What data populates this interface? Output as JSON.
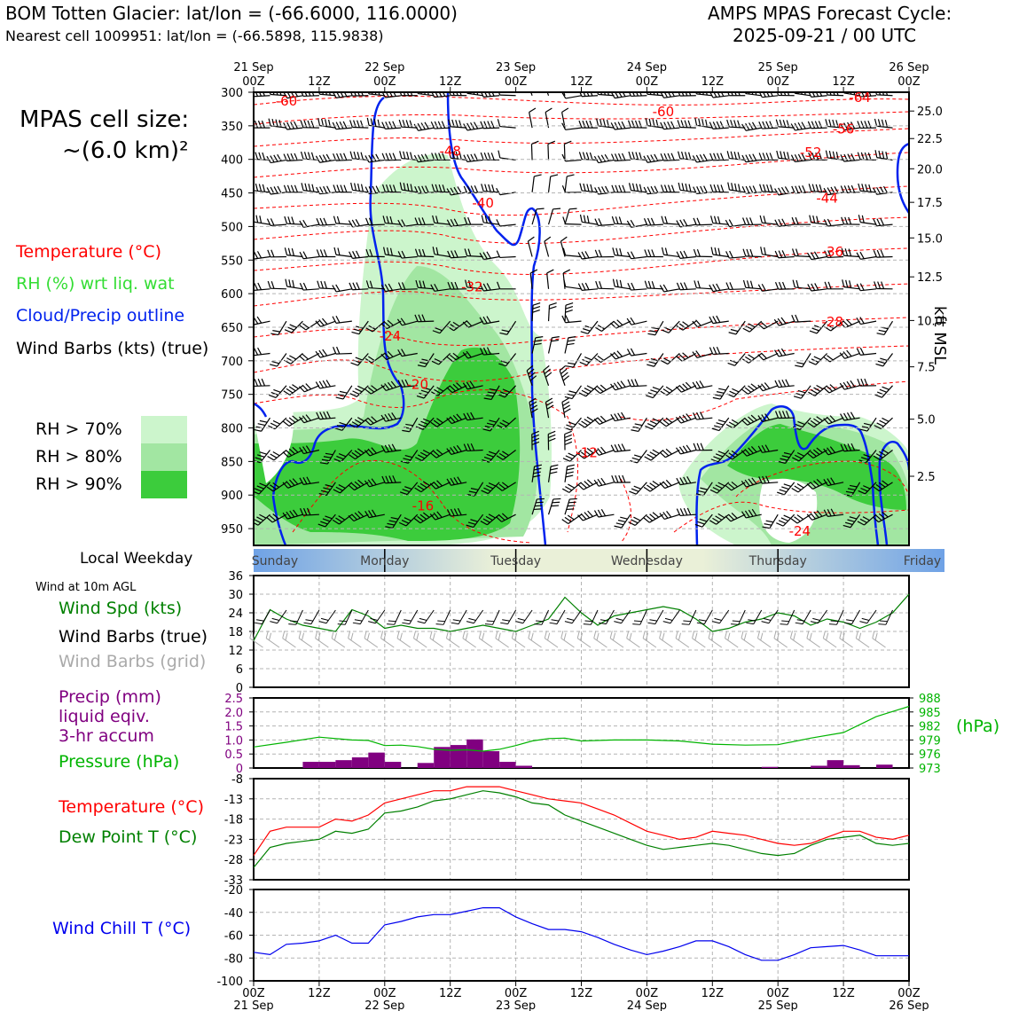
{
  "header": {
    "title_left": "BOM Totten Glacier: lat/lon = (-66.6000, 116.0000)",
    "subtitle_left": "Nearest cell 1009951: lat/lon = (-66.5898, 115.9838)",
    "title_right_1": "AMPS MPAS Forecast Cycle:",
    "title_right_2": "2025-09-21 / 00 UTC"
  },
  "legend": {
    "cell_size_1": "MPAS cell size:",
    "cell_size_2": "~(6.0 km)²",
    "temperature": "Temperature (°C)",
    "rh": "RH (%) wrt liq. wat",
    "cloud": "Cloud/Precip outline",
    "barbs": "Wind Barbs (kts) (true)",
    "rh70": "RH > 70%",
    "rh80": "RH > 80%",
    "rh90": "RH > 90%",
    "weekday_label": "Local Weekday",
    "wind_10m": "Wind at 10m AGL",
    "wind_spd": "Wind Spd (kts)",
    "wind_barbs_true": "Wind Barbs (true)",
    "wind_barbs_grid": "Wind Barbs (grid)",
    "precip_1": "Precip (mm)",
    "precip_2": "liquid eqiv.",
    "precip_3": "3-hr accum",
    "pressure": "Pressure (hPa)",
    "pressure_unit": "(hPa)",
    "temp2": "Temperature (°C)",
    "dewpoint": "Dew Point T (°C)",
    "windchill": "Wind Chill T (°C)",
    "kft": "kft MSL"
  },
  "colors": {
    "temp": "#ff0000",
    "rh_text": "#33dd33",
    "cloud": "#0022ee",
    "rh70": "#ccf5cc",
    "rh80": "#a2e6a2",
    "rh90": "#3ccc3c",
    "wind": "#008000",
    "precip": "#800080",
    "pressure": "#00b400",
    "dew": "#008000",
    "chill": "#0000ee",
    "grid": "#b4b4b4"
  },
  "chart_data": [
    {
      "type": "area",
      "title": "Pressure-time cross section",
      "x_top_labels": [
        {
          "t": 0,
          "h": "00Z",
          "d": "21 Sep"
        },
        {
          "t": 12,
          "h": "12Z",
          "d": ""
        },
        {
          "t": 24,
          "h": "00Z",
          "d": "22 Sep"
        },
        {
          "t": 36,
          "h": "12Z",
          "d": ""
        },
        {
          "t": 48,
          "h": "00Z",
          "d": "23 Sep"
        },
        {
          "t": 60,
          "h": "12Z",
          "d": ""
        },
        {
          "t": 72,
          "h": "00Z",
          "d": "24 Sep"
        },
        {
          "t": 84,
          "h": "12Z",
          "d": ""
        },
        {
          "t": 96,
          "h": "00Z",
          "d": "25 Sep"
        },
        {
          "t": 108,
          "h": "12Z",
          "d": ""
        },
        {
          "t": 120,
          "h": "00Z",
          "d": "26 Sep"
        }
      ],
      "xlim_hours": [
        0,
        120
      ],
      "pressure_ticks": [
        300,
        350,
        400,
        450,
        500,
        550,
        600,
        650,
        700,
        750,
        800,
        850,
        900,
        950
      ],
      "ylim_hpa": [
        300,
        975
      ],
      "kft_ticks": [
        {
          "p": 328,
          "label": "25.0"
        },
        {
          "p": 369,
          "label": "22.5"
        },
        {
          "p": 414,
          "label": "20.0"
        },
        {
          "p": 464,
          "label": "17.5"
        },
        {
          "p": 517,
          "label": "15.0"
        },
        {
          "p": 575,
          "label": "12.5"
        },
        {
          "p": 640,
          "label": "10.0"
        },
        {
          "p": 709,
          "label": "7.5"
        },
        {
          "p": 787,
          "label": "5.0"
        },
        {
          "p": 872,
          "label": "2.5"
        }
      ],
      "temp_labels": [
        {
          "t": 6,
          "p": 313,
          "v": "-60"
        },
        {
          "t": 75,
          "p": 329,
          "v": "-60"
        },
        {
          "t": 111,
          "p": 308,
          "v": "-64"
        },
        {
          "t": 108,
          "p": 355,
          "v": "-56"
        },
        {
          "t": 102,
          "p": 390,
          "v": "-52"
        },
        {
          "t": 36,
          "p": 388,
          "v": "-48"
        },
        {
          "t": 105,
          "p": 458,
          "v": "-44"
        },
        {
          "t": 42,
          "p": 465,
          "v": "-40"
        },
        {
          "t": 106,
          "p": 538,
          "v": "-36"
        },
        {
          "t": 40,
          "p": 590,
          "v": "-32"
        },
        {
          "t": 106,
          "p": 642,
          "v": "-28"
        },
        {
          "t": 25,
          "p": 663,
          "v": "-24"
        },
        {
          "t": 30,
          "p": 735,
          "v": "-20"
        },
        {
          "t": 61,
          "p": 837,
          "v": "-12"
        },
        {
          "t": 31,
          "p": 916,
          "v": "-16"
        },
        {
          "t": 100,
          "p": 954,
          "v": "-24"
        }
      ]
    },
    {
      "type": "line",
      "title": "Wind at 10m AGL",
      "ylabel": "Wind Spd (kts)",
      "yticks": [
        0,
        6,
        12,
        18,
        24,
        30,
        36
      ],
      "ylim": [
        0,
        36
      ],
      "x_hours": [
        0,
        3,
        6,
        9,
        12,
        15,
        18,
        21,
        24,
        27,
        30,
        33,
        36,
        39,
        42,
        45,
        48,
        51,
        54,
        57,
        60,
        63,
        66,
        69,
        72,
        75,
        78,
        81,
        84,
        87,
        90,
        93,
        96,
        99,
        102,
        105,
        108,
        111,
        114,
        117,
        120
      ],
      "values": [
        15,
        25,
        22,
        20,
        19,
        18,
        25,
        23,
        19,
        20,
        19,
        19,
        18,
        19,
        20,
        19,
        18,
        20,
        22,
        29,
        24,
        20,
        23,
        24,
        25,
        26,
        25,
        22,
        18,
        19,
        21,
        22,
        24,
        23,
        20,
        22,
        21,
        19,
        21,
        24,
        30
      ]
    },
    {
      "type": "bar",
      "title": "Precip 3-hr accum and pressure",
      "ylabel": "Precip (mm)",
      "yticks": [
        "0",
        "0.5",
        "1.0",
        "1.5",
        "2.0",
        "2.5"
      ],
      "ylim": [
        0,
        2.5
      ],
      "precip_bars": [
        {
          "t": 12,
          "v": 0.22
        },
        {
          "t": 15,
          "v": 0.22
        },
        {
          "t": 18,
          "v": 0.28
        },
        {
          "t": 21,
          "v": 0.38
        },
        {
          "t": 24,
          "v": 0.55
        },
        {
          "t": 27,
          "v": 0.22
        },
        {
          "t": 33,
          "v": 0.18
        },
        {
          "t": 36,
          "v": 0.75
        },
        {
          "t": 39,
          "v": 0.82
        },
        {
          "t": 42,
          "v": 1.02
        },
        {
          "t": 45,
          "v": 0.6
        },
        {
          "t": 48,
          "v": 0.22
        },
        {
          "t": 51,
          "v": 0.08
        },
        {
          "t": 96,
          "v": 0.04
        },
        {
          "t": 105,
          "v": 0.08
        },
        {
          "t": 108,
          "v": 0.28
        },
        {
          "t": 111,
          "v": 0.1
        },
        {
          "t": 117,
          "v": 0.12
        }
      ],
      "pressure_yticks": [
        "973",
        "976",
        "979",
        "982",
        "985",
        "988"
      ],
      "pressure_ylim": [
        973,
        988
      ],
      "pressure_x_hours": [
        0,
        6,
        12,
        18,
        21,
        24,
        27,
        30,
        33,
        36,
        39,
        42,
        45,
        48,
        51,
        54,
        57,
        60,
        66,
        72,
        78,
        84,
        90,
        96,
        102,
        108,
        114,
        120
      ],
      "pressure_values": [
        977.5,
        978.5,
        979.6,
        979.0,
        978.9,
        977.8,
        977.9,
        977.6,
        977.0,
        976.8,
        976.9,
        976.6,
        977.0,
        977.8,
        978.8,
        979.3,
        979.4,
        978.8,
        979.0,
        979.0,
        978.8,
        978.1,
        977.9,
        978.0,
        979.4,
        980.6,
        984.0,
        986.2
      ]
    },
    {
      "type": "line",
      "title": "Temperature and dew point",
      "yticks": [
        -33,
        -28,
        -23,
        -18,
        -13,
        -8
      ],
      "ylim": [
        -33,
        -8
      ],
      "x_hours": [
        0,
        3,
        6,
        9,
        12,
        15,
        18,
        21,
        24,
        27,
        30,
        33,
        36,
        39,
        42,
        45,
        48,
        51,
        54,
        57,
        60,
        63,
        66,
        69,
        72,
        75,
        78,
        81,
        84,
        87,
        90,
        93,
        96,
        99,
        102,
        105,
        108,
        111,
        114,
        117,
        120
      ],
      "series": [
        {
          "name": "Temperature (°C)",
          "values": [
            -27,
            -21,
            -20,
            -20,
            -20,
            -18,
            -18.5,
            -17,
            -14,
            -13,
            -12,
            -11,
            -11,
            -10,
            -10,
            -10,
            -11,
            -12,
            -13,
            -13.5,
            -14,
            -15.5,
            -17,
            -19,
            -21,
            -22,
            -23,
            -22.5,
            -21,
            -21.5,
            -22,
            -23,
            -24,
            -24.5,
            -24,
            -22.5,
            -21,
            -21,
            -22.5,
            -23,
            -22
          ]
        },
        {
          "name": "Dew Point T (°C)",
          "values": [
            -30,
            -25,
            -24,
            -23.5,
            -23,
            -21,
            -21.5,
            -20.5,
            -16.5,
            -16,
            -15,
            -13.5,
            -13,
            -12,
            -11,
            -11.5,
            -12.5,
            -14,
            -14.5,
            -17,
            -18.5,
            -20,
            -21.5,
            -23,
            -24.5,
            -25.5,
            -25,
            -24.5,
            -24,
            -24.5,
            -25.5,
            -26.5,
            -27,
            -26.5,
            -24.5,
            -23,
            -22.5,
            -22,
            -24,
            -24.5,
            -24
          ]
        }
      ]
    },
    {
      "type": "line",
      "title": "Wind Chill",
      "yticks": [
        -100,
        -80,
        -60,
        -40,
        -20
      ],
      "ylim": [
        -100,
        -20
      ],
      "x_hours": [
        0,
        3,
        6,
        9,
        12,
        15,
        18,
        21,
        24,
        27,
        30,
        33,
        36,
        39,
        42,
        45,
        48,
        51,
        54,
        57,
        60,
        63,
        66,
        69,
        72,
        75,
        78,
        81,
        84,
        87,
        90,
        93,
        96,
        99,
        102,
        105,
        108,
        111,
        114,
        117,
        120
      ],
      "values": [
        -75,
        -77,
        -68,
        -67,
        -65,
        -60,
        -67,
        -67,
        -51,
        -48,
        -44,
        -42,
        -42,
        -39,
        -36,
        -36,
        -44,
        -50,
        -55,
        -55,
        -57,
        -62,
        -68,
        -73,
        -77,
        -74,
        -70,
        -65,
        -65,
        -70,
        -77,
        -82,
        -82,
        -77,
        -71,
        -70,
        -69,
        -73,
        -78,
        -78,
        -78
      ],
      "x_bottom_labels": [
        {
          "t": 0,
          "h": "00Z",
          "d": "21 Sep"
        },
        {
          "t": 12,
          "h": "12Z",
          "d": ""
        },
        {
          "t": 24,
          "h": "00Z",
          "d": "22 Sep"
        },
        {
          "t": 36,
          "h": "12Z",
          "d": ""
        },
        {
          "t": 48,
          "h": "00Z",
          "d": "23 Sep"
        },
        {
          "t": 60,
          "h": "12Z",
          "d": ""
        },
        {
          "t": 72,
          "h": "00Z",
          "d": "24 Sep"
        },
        {
          "t": 84,
          "h": "12Z",
          "d": ""
        },
        {
          "t": 96,
          "h": "00Z",
          "d": "25 Sep"
        },
        {
          "t": 108,
          "h": "12Z",
          "d": ""
        },
        {
          "t": 120,
          "h": "00Z",
          "d": "26 Sep"
        }
      ]
    }
  ],
  "weekdays": [
    {
      "name": "Sunday",
      "t": 0
    },
    {
      "name": "Monday",
      "t": 14
    },
    {
      "name": "Tuesday",
      "t": 38
    },
    {
      "name": "Wednesday",
      "t": 62
    },
    {
      "name": "Thursday",
      "t": 86
    },
    {
      "name": "Friday",
      "t": 110
    }
  ],
  "weekday_boundaries": [
    24,
    48,
    72,
    96
  ]
}
